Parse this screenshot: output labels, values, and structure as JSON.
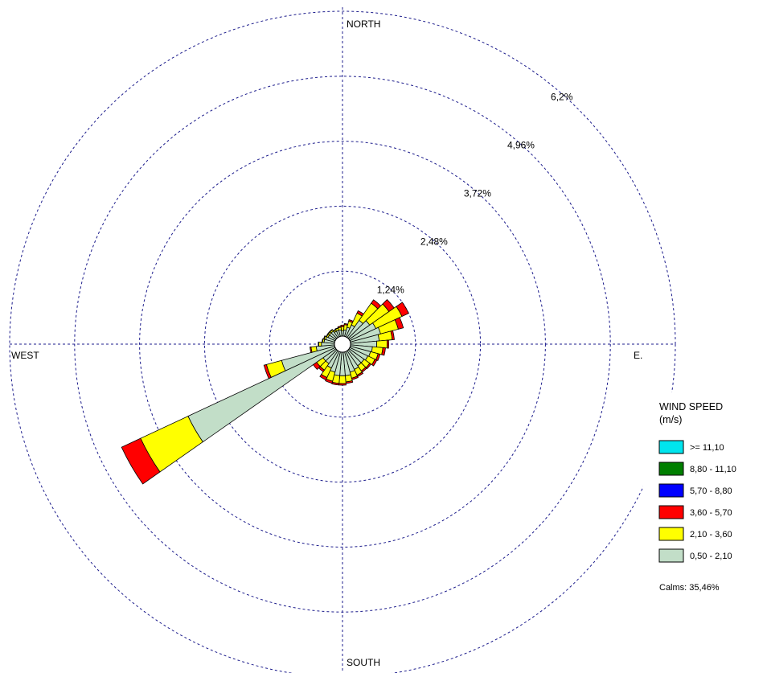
{
  "chart_data": {
    "type": "wind-rose",
    "title": "",
    "units_label": "WIND SPEED",
    "units_sub": "(m/s)",
    "directions": [
      "NORTH",
      "E.",
      "SOUTH",
      "WEST"
    ],
    "ring_labels": [
      "1,24%",
      "2,48%",
      "3,72%",
      "4,96%",
      "6,2%"
    ],
    "ring_values": [
      1.24,
      2.48,
      3.72,
      4.96,
      6.2
    ],
    "rmax": 6.2,
    "calms_label": "Calms: 35,46%",
    "bins": [
      {
        "label": ">= 11,10",
        "color": "#00e5ee"
      },
      {
        "label": "8,80 - 11,10",
        "color": "#007f00"
      },
      {
        "label": "5,70 - 8,80",
        "color": "#0000ff"
      },
      {
        "label": "3,60 - 5,70",
        "color": "#ff0000"
      },
      {
        "label": "2,10 - 3,60",
        "color": "#ffff00"
      },
      {
        "label": "0,50 - 2,10",
        "color": "#c2dec8"
      }
    ],
    "sector_width_deg": 10,
    "sectors": [
      {
        "dir": 0,
        "v": [
          0,
          0,
          0,
          0.03,
          0.08,
          0.1
        ]
      },
      {
        "dir": 10,
        "v": [
          0,
          0,
          0,
          0.02,
          0.1,
          0.12
        ]
      },
      {
        "dir": 20,
        "v": [
          0,
          0,
          0,
          0.03,
          0.12,
          0.18
        ]
      },
      {
        "dir": 30,
        "v": [
          0,
          0,
          0,
          0.05,
          0.25,
          0.25
        ]
      },
      {
        "dir": 40,
        "v": [
          0,
          0,
          0,
          0.08,
          0.4,
          0.4
        ]
      },
      {
        "dir": 50,
        "v": [
          0,
          0,
          0,
          0.12,
          0.45,
          0.48
        ]
      },
      {
        "dir": 60,
        "v": [
          0,
          0,
          0,
          0.14,
          0.55,
          0.55
        ]
      },
      {
        "dir": 70,
        "v": [
          0,
          0,
          0,
          0.1,
          0.35,
          0.6
        ]
      },
      {
        "dir": 80,
        "v": [
          0,
          0,
          0,
          0.04,
          0.25,
          0.55
        ]
      },
      {
        "dir": 90,
        "v": [
          0,
          0,
          0,
          0.03,
          0.2,
          0.5
        ]
      },
      {
        "dir": 100,
        "v": [
          0,
          0,
          0,
          0.05,
          0.2,
          0.42
        ]
      },
      {
        "dir": 110,
        "v": [
          0,
          0,
          0,
          0.04,
          0.15,
          0.4
        ]
      },
      {
        "dir": 120,
        "v": [
          0,
          0,
          0,
          0.04,
          0.15,
          0.38
        ]
      },
      {
        "dir": 130,
        "v": [
          0,
          0,
          0,
          0.03,
          0.13,
          0.35
        ]
      },
      {
        "dir": 140,
        "v": [
          0,
          0,
          0,
          0.03,
          0.12,
          0.35
        ]
      },
      {
        "dir": 150,
        "v": [
          0,
          0,
          0,
          0.03,
          0.12,
          0.38
        ]
      },
      {
        "dir": 160,
        "v": [
          0,
          0,
          0,
          0.03,
          0.12,
          0.4
        ]
      },
      {
        "dir": 170,
        "v": [
          0,
          0,
          0,
          0.03,
          0.12,
          0.45
        ]
      },
      {
        "dir": 180,
        "v": [
          0,
          0,
          0,
          0.03,
          0.15,
          0.45
        ]
      },
      {
        "dir": 190,
        "v": [
          0,
          0,
          0,
          0.03,
          0.15,
          0.45
        ]
      },
      {
        "dir": 200,
        "v": [
          0,
          0,
          0,
          0.04,
          0.18,
          0.4
        ]
      },
      {
        "dir": 210,
        "v": [
          0,
          0,
          0,
          0.05,
          0.2,
          0.35
        ]
      },
      {
        "dir": 220,
        "v": [
          0,
          0,
          0,
          0.04,
          0.15,
          0.3
        ]
      },
      {
        "dir": 230,
        "v": [
          0,
          0,
          0,
          0.08,
          0.15,
          0.3
        ]
      },
      {
        "dir": 240,
        "v": [
          0,
          0,
          0,
          0.4,
          1.0,
          3.1
        ]
      },
      {
        "dir": 250,
        "v": [
          0,
          0,
          0,
          0.05,
          0.3,
          1.05
        ]
      },
      {
        "dir": 260,
        "v": [
          0,
          0,
          0,
          0.02,
          0.1,
          0.35
        ]
      },
      {
        "dir": 270,
        "v": [
          0,
          0,
          0,
          0.01,
          0.05,
          0.25
        ]
      },
      {
        "dir": 280,
        "v": [
          0,
          0,
          0,
          0.01,
          0.03,
          0.2
        ]
      },
      {
        "dir": 290,
        "v": [
          0,
          0,
          0,
          0.01,
          0.03,
          0.18
        ]
      },
      {
        "dir": 300,
        "v": [
          0,
          0,
          0,
          0.01,
          0.03,
          0.15
        ]
      },
      {
        "dir": 310,
        "v": [
          0,
          0,
          0,
          0.01,
          0.03,
          0.15
        ]
      },
      {
        "dir": 320,
        "v": [
          0,
          0,
          0,
          0.01,
          0.03,
          0.15
        ]
      },
      {
        "dir": 330,
        "v": [
          0,
          0,
          0,
          0.01,
          0.03,
          0.12
        ]
      },
      {
        "dir": 340,
        "v": [
          0,
          0,
          0,
          0.01,
          0.04,
          0.12
        ]
      },
      {
        "dir": 350,
        "v": [
          0,
          0,
          0,
          0.02,
          0.05,
          0.12
        ]
      }
    ],
    "grid": true,
    "legend_position": "right"
  }
}
